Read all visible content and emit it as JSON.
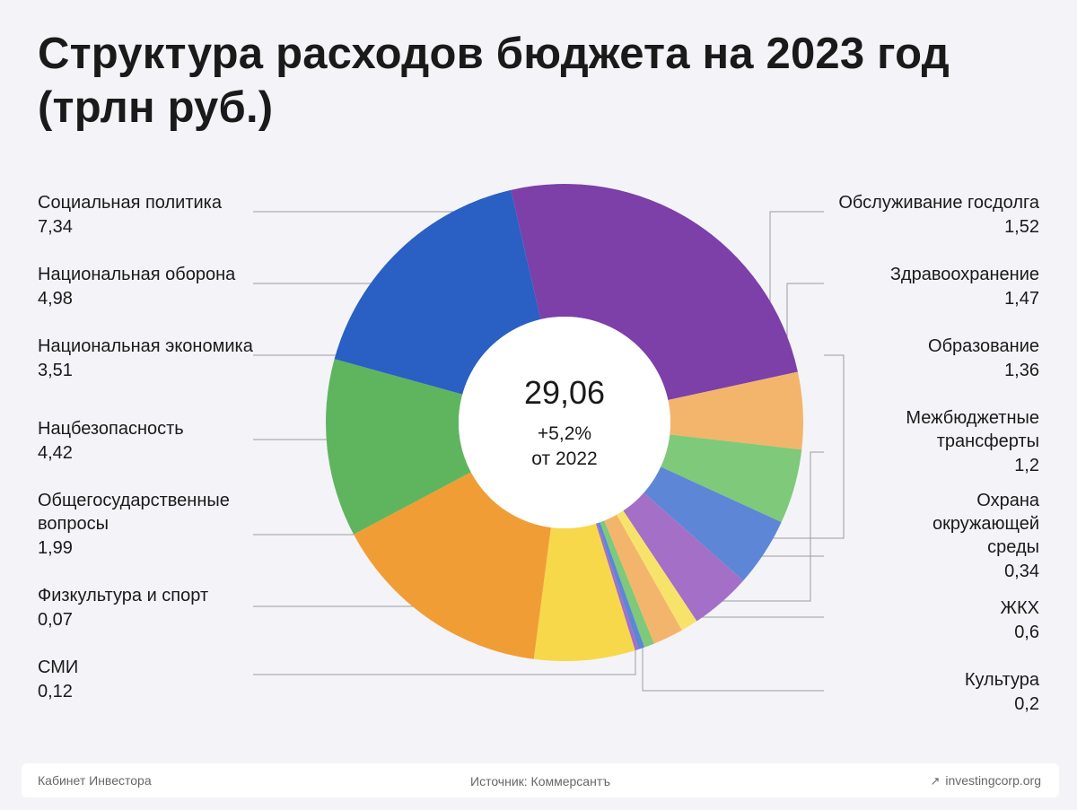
{
  "title": {
    "line1": "Структура расходов бюджета на 2023 год",
    "line2": "(трлн руб.)"
  },
  "center": {
    "total": "29,06",
    "change": "+5,2%",
    "change_ref": "от 2022"
  },
  "footer": {
    "left": "Кабинет Инвестора",
    "center": "Источник: Коммерсантъ",
    "right": "investingcorp.org",
    "right_icon": "arrow-up-right-icon"
  },
  "chart_data": {
    "type": "pie",
    "variant": "donut",
    "unit": "трлн руб.",
    "start_angle_deg": -13,
    "direction": "clockwise",
    "slices": [
      {
        "label": "Социальная политика",
        "value_text": "7,34",
        "value": 7.34,
        "color": "#7d3fa8",
        "side": "left"
      },
      {
        "label": "Обслуживание госдолга",
        "value_text": "1,52",
        "value": 1.52,
        "color": "#f3b56c",
        "side": "right"
      },
      {
        "label": "Здравоохранение",
        "value_text": "1,47",
        "value": 1.47,
        "color": "#7ec97a",
        "side": "right"
      },
      {
        "label": "Образование",
        "value_text": "1,36",
        "value": 1.36,
        "color": "#5e86d6",
        "side": "right"
      },
      {
        "label": "Межбюджетные трансферты",
        "label_lines": [
          "Межбюджетные",
          "трансферты"
        ],
        "value_text": "1,2",
        "value": 1.2,
        "color": "#a46fc6",
        "side": "right"
      },
      {
        "label": "Охрана окружающей среды",
        "label_lines": [
          "Охрана",
          "окружающей",
          "среды"
        ],
        "value_text": "0,34",
        "value": 0.34,
        "color": "#f8e36a",
        "side": "right"
      },
      {
        "label": "ЖКХ",
        "value_text": "0,6",
        "value": 0.6,
        "color": "#f3b56c",
        "side": "right"
      },
      {
        "label": "Культура",
        "value_text": "0,2",
        "value": 0.2,
        "color": "#7ec97a",
        "side": "right"
      },
      {
        "label": "СМИ",
        "value_text": "0,12",
        "value": 0.12,
        "color": "#5e86d6",
        "side": "left"
      },
      {
        "label": "Физкультура и спорт",
        "value_text": "0,07",
        "value": 0.07,
        "color": "#a46fc6",
        "side": "left"
      },
      {
        "label": "Общегосударственные вопросы",
        "label_lines": [
          "Общегосударственные",
          "вопросы"
        ],
        "value_text": "1,99",
        "value": 1.99,
        "color": "#f7d84b",
        "side": "left"
      },
      {
        "label": "Нацбезопасность",
        "value_text": "4,42",
        "value": 4.42,
        "color": "#f19d35",
        "side": "left"
      },
      {
        "label": "Национальная экономика",
        "value_text": "3,51",
        "value": 3.51,
        "color": "#5eb55e",
        "side": "left"
      },
      {
        "label": "Национальная оборона",
        "value_text": "4,98",
        "value": 4.98,
        "color": "#2a5fc4",
        "side": "left"
      }
    ]
  }
}
